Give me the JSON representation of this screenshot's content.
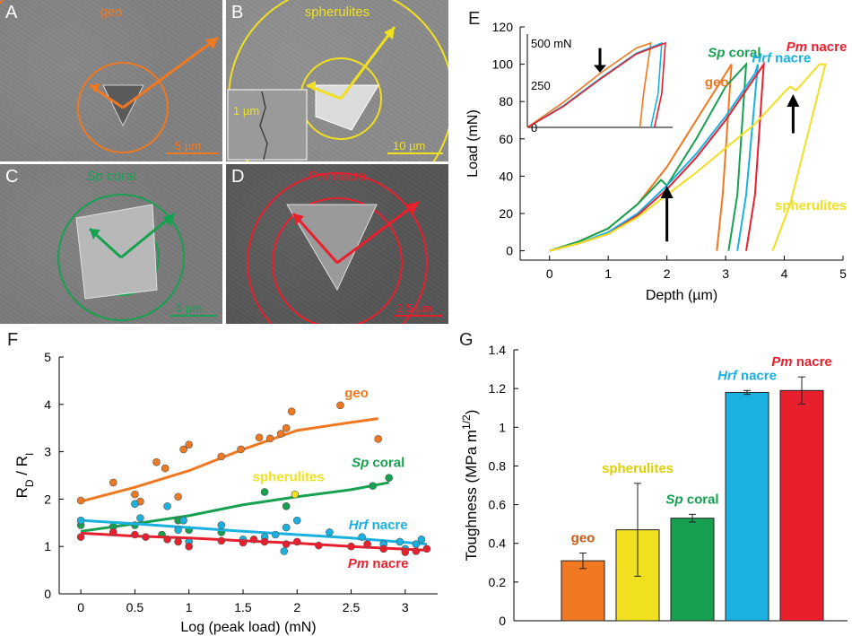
{
  "panels": {
    "A": {
      "letter": "A",
      "title": "geo",
      "scale": "5 µm",
      "color": "#f07820"
    },
    "B": {
      "letter": "B",
      "title": "spherulites",
      "scale": "10 µm",
      "inset_scale": "1 µm",
      "color": "#f0e020"
    },
    "C": {
      "letter": "C",
      "title": "Sp coral",
      "title_italic": "Sp",
      "title_rest": " coral",
      "scale": "5 µm",
      "color": "#16a050"
    },
    "D": {
      "letter": "D",
      "title": "Pm nacre",
      "title_italic": "Pm",
      "title_rest": " nacre",
      "scale": "2.5 µm",
      "color": "#e8202e"
    }
  },
  "colors": {
    "geo": "#f07820",
    "spherulites": "#f0e020",
    "sp_coral": "#16a050",
    "hrf_nacre": "#1ab0e0",
    "pm_nacre": "#e8202e",
    "black": "#000000"
  },
  "chart_data": [
    {
      "id": "E",
      "letter": "E",
      "type": "line",
      "xlabel": "Depth (µm)",
      "ylabel": "Load (mN)",
      "xlim": [
        -0.5,
        5
      ],
      "ylim": [
        -5,
        120
      ],
      "xticks": [
        0,
        1,
        2,
        3,
        4,
        5
      ],
      "yticks": [
        0,
        20,
        40,
        60,
        80,
        100,
        120
      ],
      "series": [
        {
          "name": "geo",
          "color": "#f07820",
          "x": [
            0,
            0.5,
            1,
            1.5,
            2,
            2.5,
            3,
            3.1,
            2.95,
            2.85
          ],
          "y": [
            0,
            5,
            12,
            25,
            45,
            70,
            95,
            100,
            30,
            0
          ]
        },
        {
          "name": "Sp coral",
          "color": "#16a050",
          "x": [
            0,
            0.5,
            1,
            1.5,
            1.9,
            2.0,
            2.5,
            3.0,
            3.35,
            3.2,
            3.05
          ],
          "y": [
            0,
            5,
            12,
            25,
            38,
            35,
            60,
            88,
            100,
            30,
            0
          ]
        },
        {
          "name": "Hrf nacre",
          "color": "#1ab0e0",
          "x": [
            0,
            0.5,
            1,
            1.5,
            2,
            2.5,
            3,
            3.5,
            3.55,
            3.35,
            3.2
          ],
          "y": [
            0,
            4,
            10,
            20,
            35,
            52,
            72,
            95,
            100,
            30,
            0
          ]
        },
        {
          "name": "Pm nacre",
          "color": "#e8202e",
          "x": [
            0,
            0.5,
            1,
            1.5,
            2,
            2.5,
            3,
            3.5,
            3.65,
            3.5,
            3.35
          ],
          "y": [
            0,
            4,
            9,
            19,
            33,
            50,
            70,
            93,
            100,
            30,
            0
          ]
        },
        {
          "name": "spherulites",
          "color": "#f0e020",
          "x": [
            0,
            0.5,
            1,
            1.5,
            2,
            2.5,
            3,
            3.5,
            4,
            4.1,
            4.2,
            4.6,
            4.7,
            4.1,
            3.8
          ],
          "y": [
            0,
            4,
            9,
            18,
            30,
            42,
            55,
            68,
            85,
            88,
            86,
            100,
            100,
            25,
            0
          ]
        }
      ],
      "labels": [
        {
          "text": "geo",
          "italic": "",
          "x": 2.85,
          "y": 88,
          "color": "#f07820"
        },
        {
          "text": "Sp coral",
          "italic": "Sp",
          "x": 3.15,
          "y": 104,
          "color": "#16a050"
        },
        {
          "text": "Hrf nacre",
          "italic": "Hrf",
          "x": 3.95,
          "y": 101,
          "color": "#1ab0e0"
        },
        {
          "text": "Pm nacre",
          "italic": "Pm",
          "x": 4.55,
          "y": 107,
          "color": "#e8202e"
        },
        {
          "text": "spherulites",
          "italic": "",
          "x": 4.45,
          "y": 22,
          "color": "#f0e020"
        }
      ],
      "inset": {
        "tick_labels": [
          "500 mN",
          "250",
          "0"
        ],
        "series": [
          {
            "name": "geo",
            "color": "#f07820",
            "x": [
              0,
              0.5,
              1,
              1.5,
              1.7,
              1.6,
              1.55
            ],
            "y": [
              0,
              150,
              320,
              470,
              500,
              200,
              0
            ]
          },
          {
            "name": "Hrf nacre",
            "color": "#1ab0e0",
            "x": [
              0,
              0.5,
              1,
              1.5,
              1.85,
              1.8,
              1.7
            ],
            "y": [
              0,
              130,
              290,
              440,
              500,
              200,
              0
            ]
          },
          {
            "name": "Pm nacre",
            "color": "#e8202e",
            "x": [
              0,
              0.5,
              1,
              1.5,
              1.9,
              1.85,
              1.75
            ],
            "y": [
              0,
              125,
              285,
              435,
              500,
              200,
              0
            ]
          }
        ]
      }
    },
    {
      "id": "F",
      "letter": "F",
      "type": "scatter",
      "xlabel": "Log (peak load) (mN)",
      "ylabel": "R_D / R_I",
      "ylabel_main": "R",
      "ylabel_sub1": "D",
      "ylabel_mid": " / R",
      "ylabel_sub2": "I",
      "xlim": [
        -0.2,
        3.3
      ],
      "ylim": [
        0,
        5
      ],
      "xticks": [
        0,
        0.5,
        1,
        1.5,
        2,
        2.5,
        3
      ],
      "xtick_labels": [
        "0",
        "0.5",
        "1",
        "1.5",
        "2",
        "2.5",
        "3"
      ],
      "yticks": [
        0,
        1,
        2,
        3,
        4,
        5
      ],
      "series": [
        {
          "name": "geo",
          "color": "#f07820",
          "points": [
            [
              0,
              1.97
            ],
            [
              0.3,
              2.35
            ],
            [
              0.5,
              2.1
            ],
            [
              0.55,
              1.95
            ],
            [
              0.7,
              2.78
            ],
            [
              0.78,
              2.65
            ],
            [
              0.9,
              2.05
            ],
            [
              0.95,
              3.05
            ],
            [
              1.0,
              3.15
            ],
            [
              1.3,
              2.9
            ],
            [
              1.48,
              3.05
            ],
            [
              1.65,
              3.3
            ],
            [
              1.75,
              3.28
            ],
            [
              1.85,
              3.38
            ],
            [
              1.9,
              3.5
            ],
            [
              1.95,
              3.85
            ],
            [
              2.4,
              3.98
            ],
            [
              2.75,
              3.27
            ]
          ],
          "fit": [
            [
              0,
              1.95
            ],
            [
              0.5,
              2.25
            ],
            [
              1.0,
              2.6
            ],
            [
              1.5,
              3.05
            ],
            [
              2.0,
              3.45
            ],
            [
              2.5,
              3.62
            ],
            [
              2.75,
              3.7
            ]
          ]
        },
        {
          "name": "Sp coral",
          "color": "#16a050",
          "points": [
            [
              0,
              1.45
            ],
            [
              0.3,
              1.42
            ],
            [
              0.5,
              1.45
            ],
            [
              0.75,
              1.25
            ],
            [
              0.9,
              1.55
            ],
            [
              1.0,
              1.35
            ],
            [
              1.3,
              1.3
            ],
            [
              1.7,
              2.15
            ],
            [
              1.9,
              1.85
            ],
            [
              2.7,
              2.28
            ],
            [
              2.85,
              2.45
            ]
          ],
          "fit": [
            [
              0,
              1.32
            ],
            [
              0.5,
              1.48
            ],
            [
              1.0,
              1.65
            ],
            [
              1.5,
              1.88
            ],
            [
              2.0,
              2.05
            ],
            [
              2.5,
              2.2
            ],
            [
              2.85,
              2.35
            ]
          ]
        },
        {
          "name": "spherulites",
          "color": "#f0e020",
          "points": [
            [
              1.98,
              2.1
            ]
          ],
          "fit": []
        },
        {
          "name": "Hrf nacre",
          "color": "#1ab0e0",
          "points": [
            [
              0,
              1.55
            ],
            [
              0.3,
              1.3
            ],
            [
              0.5,
              1.9
            ],
            [
              0.55,
              1.6
            ],
            [
              0.8,
              1.85
            ],
            [
              0.9,
              1.35
            ],
            [
              0.95,
              1.55
            ],
            [
              1.0,
              1.1
            ],
            [
              1.3,
              1.45
            ],
            [
              1.5,
              1.15
            ],
            [
              1.7,
              1.2
            ],
            [
              1.8,
              1.25
            ],
            [
              1.88,
              0.9
            ],
            [
              1.9,
              1.4
            ],
            [
              2.0,
              1.55
            ],
            [
              2.3,
              1.3
            ],
            [
              2.6,
              1.2
            ],
            [
              2.8,
              1.05
            ],
            [
              2.95,
              1.1
            ],
            [
              3.0,
              0.95
            ],
            [
              3.1,
              1.05
            ],
            [
              3.15,
              1.15
            ]
          ],
          "fit": [
            [
              0,
              1.55
            ],
            [
              0.5,
              1.48
            ],
            [
              1.0,
              1.4
            ],
            [
              1.5,
              1.32
            ],
            [
              2.0,
              1.25
            ],
            [
              2.5,
              1.18
            ],
            [
              3.2,
              1.05
            ]
          ]
        },
        {
          "name": "Pm nacre",
          "color": "#e8202e",
          "points": [
            [
              0,
              1.2
            ],
            [
              0.3,
              1.3
            ],
            [
              0.5,
              1.25
            ],
            [
              0.6,
              1.2
            ],
            [
              0.8,
              1.15
            ],
            [
              0.9,
              1.1
            ],
            [
              1.0,
              1.0
            ],
            [
              1.3,
              1.12
            ],
            [
              1.5,
              1.08
            ],
            [
              1.6,
              1.15
            ],
            [
              1.7,
              1.1
            ],
            [
              1.9,
              1.05
            ],
            [
              2.0,
              1.1
            ],
            [
              2.2,
              1.02
            ],
            [
              2.5,
              1.0
            ],
            [
              2.65,
              1.05
            ],
            [
              2.8,
              0.95
            ],
            [
              3.0,
              0.88
            ],
            [
              3.1,
              0.9
            ],
            [
              3.2,
              0.95
            ]
          ],
          "fit": [
            [
              0,
              1.28
            ],
            [
              0.5,
              1.22
            ],
            [
              1.0,
              1.18
            ],
            [
              1.5,
              1.12
            ],
            [
              2.0,
              1.07
            ],
            [
              2.5,
              1.0
            ],
            [
              3.2,
              0.92
            ]
          ]
        }
      ],
      "labels": [
        {
          "text": "geo",
          "italic": "",
          "x": 2.55,
          "y": 4.15,
          "color": "#f07820"
        },
        {
          "text": "Sp coral",
          "italic": "Sp",
          "x": 2.75,
          "y": 2.68,
          "color": "#16a050"
        },
        {
          "text": "spherulites",
          "italic": "",
          "x": 1.92,
          "y": 2.38,
          "color": "#f0e020"
        },
        {
          "text": "Hrf nacre",
          "italic": "Hrf",
          "x": 2.75,
          "y": 1.36,
          "color": "#1ab0e0"
        },
        {
          "text": "Pm nacre",
          "italic": "Pm",
          "x": 2.75,
          "y": 0.55,
          "color": "#e8202e"
        }
      ]
    },
    {
      "id": "G",
      "letter": "G",
      "type": "bar",
      "ylabel": "Toughness (MPa m",
      "ylabel_sup": "1/2",
      "ylabel_close": ")",
      "ylim": [
        0,
        1.4
      ],
      "yticks": [
        0,
        0.2,
        0.4,
        0.6,
        0.8,
        1,
        1.2,
        1.4
      ],
      "ytick_labels": [
        "0",
        "0.2",
        "0.4",
        "0.6",
        "0.8",
        "1",
        "1.2",
        "1.4"
      ],
      "categories": [
        "geo",
        "spherulites",
        "Sp coral",
        "Hrf nacre",
        "Pm nacre"
      ],
      "category_italic": [
        "",
        "",
        "Sp",
        "Hrf",
        "Pm"
      ],
      "values": [
        0.31,
        0.47,
        0.53,
        1.18,
        1.19
      ],
      "errors": [
        0.04,
        0.24,
        0.02,
        0.01,
        0.07
      ],
      "colors": [
        "#f07820",
        "#f0e020",
        "#16a050",
        "#1ab0e0",
        "#e8202e"
      ],
      "label_color": [
        "#c85a18",
        "#e0d000",
        "#16a050",
        "#1ab0e0",
        "#e8202e"
      ]
    }
  ]
}
